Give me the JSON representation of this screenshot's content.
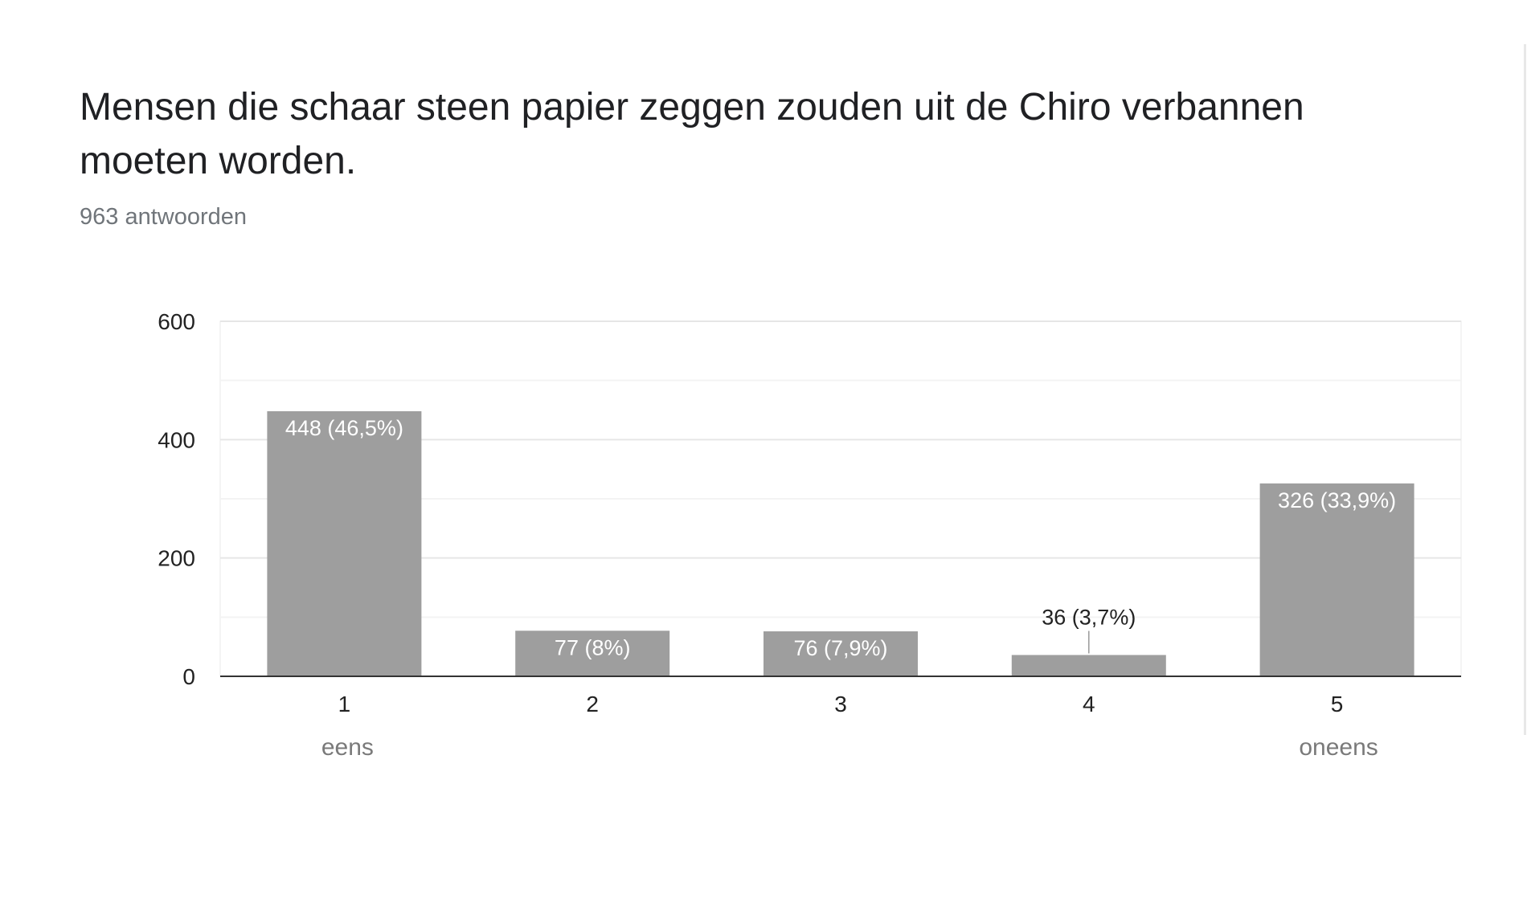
{
  "question": {
    "title": "Mensen die schaar steen papier zeggen zouden uit de Chiro verbannen moeten worden.",
    "response_count": "963 antwoorden"
  },
  "chart_data": {
    "type": "bar",
    "title": "Mensen die schaar steen papier zeggen zouden uit de Chiro verbannen moeten worden.",
    "subtitle": "963 antwoorden",
    "categories": [
      "1",
      "2",
      "3",
      "4",
      "5"
    ],
    "values": [
      448,
      77,
      76,
      36,
      326
    ],
    "data_labels": [
      "448 (46,5%)",
      "77 (8%)",
      "76 (7,9%)",
      "36 (3,7%)",
      "326 (33,9%)"
    ],
    "scale_labels": {
      "low": "eens",
      "high": "oneens"
    },
    "yticks": [
      0,
      200,
      400,
      600
    ],
    "ylim": [
      0,
      600
    ],
    "grid": true,
    "bar_color": "#9e9e9e"
  }
}
